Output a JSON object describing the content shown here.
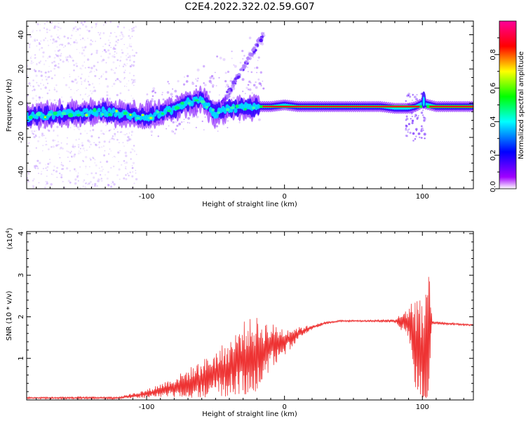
{
  "chart_data": [
    {
      "type": "heatmap",
      "title": "C2E4.2022.322.02.59.G07",
      "xlabel": "Height of straight line (km)",
      "ylabel": "Frequency (Hz)",
      "xlim": [
        -187,
        137
      ],
      "ylim": [
        -50,
        48
      ],
      "xticks": [
        -100,
        0,
        100
      ],
      "yticks": [
        -40,
        -20,
        0,
        20,
        40
      ],
      "colorbar": {
        "label": "Normalized spectral amplitude",
        "range": [
          0,
          1
        ],
        "ticks": [
          "0.0",
          "0.2",
          "0.4",
          "0.6",
          "0.8"
        ],
        "colors": [
          "#ffffff",
          "#a000ff",
          "#0000ff",
          "#00ffff",
          "#00ff00",
          "#ffff00",
          "#ff0000",
          "#ff0099"
        ]
      },
      "ridge": {
        "x": [
          -187,
          -170,
          -150,
          -130,
          -110,
          -100,
          -90,
          -80,
          -70,
          -60,
          -50,
          -40,
          -30,
          -20,
          -10,
          0,
          10,
          20,
          50,
          70,
          80,
          90,
          95,
          100,
          110,
          137
        ],
        "y": [
          -8,
          -7,
          -6,
          -5,
          -7,
          -8,
          -6,
          -3,
          0,
          2,
          -6,
          -3,
          -3,
          -2,
          -2,
          -1,
          -2,
          -2,
          -2,
          -2,
          -3,
          -3,
          -2,
          0,
          -2,
          -2
        ]
      }
    },
    {
      "type": "line",
      "xlabel": "Height of straight line (km)",
      "ylabel": "SNR (10 * v/v)",
      "yscale_label": "(x10",
      "yscale_exp": "4",
      "yscale_close": ")",
      "xlim": [
        -187,
        137
      ],
      "ylim": [
        0,
        4.05
      ],
      "xticks": [
        -100,
        0,
        100
      ],
      "yticks": [
        1,
        2,
        3,
        4
      ],
      "color": "#ee3333",
      "series": [
        {
          "envelope_x": [
            -187,
            -120,
            -100,
            -80,
            -60,
            -40,
            -30,
            -20,
            -10,
            0,
            10,
            20,
            30,
            40,
            60,
            80,
            90,
            95,
            100,
            103,
            105,
            107,
            110,
            137
          ],
          "baseline": [
            0.05,
            0.05,
            0.15,
            0.3,
            0.5,
            0.75,
            1.0,
            1.1,
            1.3,
            1.4,
            1.6,
            1.75,
            1.85,
            1.9,
            1.9,
            1.9,
            1.85,
            1.4,
            0.9,
            1.2,
            1.8,
            1.85,
            1.85,
            1.8
          ],
          "noise": [
            0.02,
            0.03,
            0.1,
            0.25,
            0.45,
            0.7,
            0.9,
            0.9,
            0.55,
            0.35,
            0.15,
            0.06,
            0.03,
            0.02,
            0.02,
            0.04,
            0.4,
            1.3,
            1.4,
            2.4,
            1.2,
            0.05,
            0.03,
            0.02
          ]
        }
      ]
    }
  ]
}
